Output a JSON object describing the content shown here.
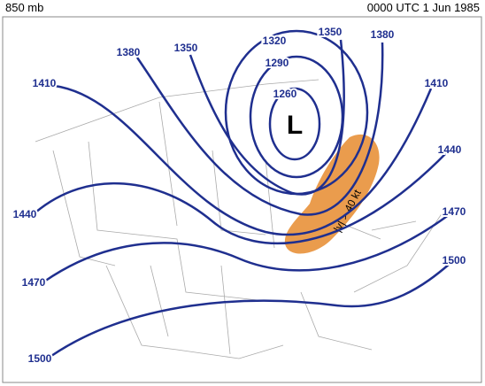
{
  "header": {
    "level": "850 mb",
    "time": "0000 UTC 1 Jun 1985"
  },
  "annotations": {
    "low": "L",
    "wind": "|v| > 40 kt"
  },
  "contours": [
    "1380",
    "1350",
    "1320",
    "1290",
    "1260",
    "1350",
    "1380",
    "1410",
    "1410",
    "1440",
    "1440",
    "1470",
    "1470",
    "1500",
    "1500"
  ]
}
